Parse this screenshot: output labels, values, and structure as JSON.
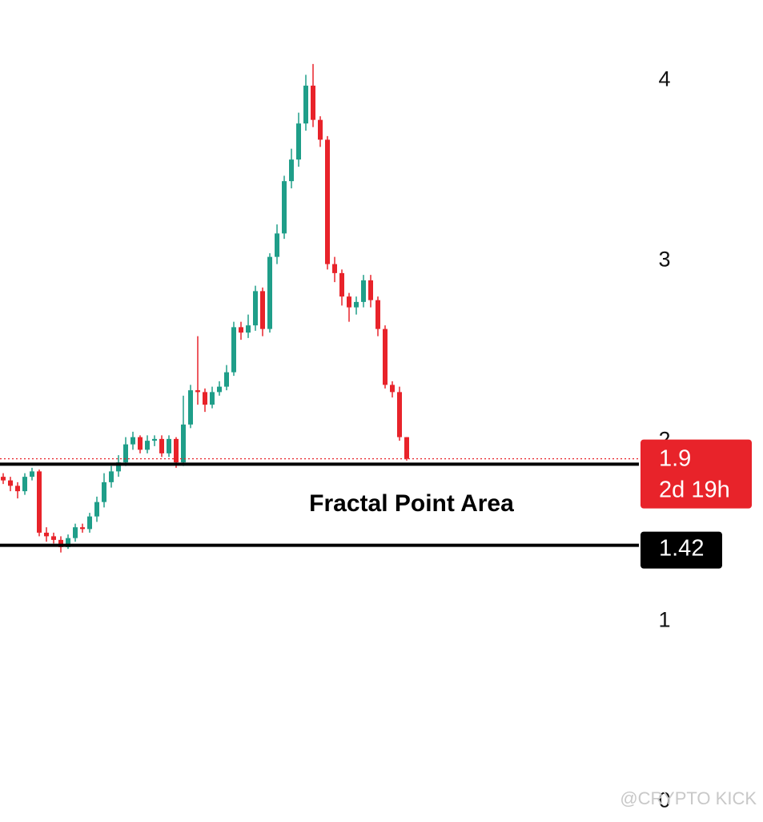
{
  "chart_data": {
    "type": "candlestick",
    "open": [
      1.8,
      1.78,
      1.75,
      1.72,
      1.8,
      1.83,
      1.49,
      1.47,
      1.45,
      1.41,
      1.46,
      1.52,
      1.51,
      1.58,
      1.66,
      1.77,
      1.83,
      1.88,
      1.98,
      2.02,
      1.95,
      2.0,
      2.01,
      1.93,
      2.01,
      1.88,
      2.09,
      2.28,
      2.27,
      2.2,
      2.27,
      2.3,
      2.38,
      2.63,
      2.6,
      2.64,
      2.83,
      2.62,
      3.02,
      3.15,
      3.44,
      3.56,
      3.76,
      3.97,
      3.78,
      3.67,
      2.98,
      2.93,
      2.8,
      2.74,
      2.77,
      2.89,
      2.78,
      2.62,
      2.31,
      2.27,
      2.02
    ],
    "high": [
      1.82,
      1.8,
      1.77,
      1.82,
      1.85,
      1.84,
      1.52,
      1.49,
      1.47,
      1.48,
      1.54,
      1.54,
      1.6,
      1.69,
      1.82,
      1.86,
      1.92,
      2.02,
      2.05,
      2.03,
      2.03,
      2.03,
      2.03,
      2.03,
      2.02,
      2.25,
      2.31,
      2.58,
      2.29,
      2.3,
      2.33,
      2.42,
      2.66,
      2.66,
      2.7,
      2.86,
      2.85,
      3.04,
      3.2,
      3.47,
      3.62,
      3.82,
      4.03,
      4.09,
      3.8,
      3.69,
      3.02,
      2.95,
      2.82,
      2.8,
      2.92,
      2.92,
      2.8,
      2.64,
      2.33,
      2.3,
      2.02
    ],
    "low": [
      1.76,
      1.72,
      1.68,
      1.7,
      1.78,
      1.47,
      1.44,
      1.43,
      1.38,
      1.4,
      1.44,
      1.49,
      1.49,
      1.55,
      1.63,
      1.74,
      1.8,
      1.86,
      1.95,
      1.93,
      1.93,
      1.97,
      1.91,
      1.91,
      1.85,
      1.86,
      2.07,
      2.2,
      2.16,
      2.18,
      2.25,
      2.28,
      2.36,
      2.56,
      2.57,
      2.61,
      2.58,
      2.6,
      2.98,
      3.12,
      3.4,
      3.52,
      3.72,
      3.74,
      3.63,
      2.95,
      2.88,
      2.75,
      2.66,
      2.7,
      2.74,
      2.74,
      2.58,
      2.29,
      2.24,
      2.0,
      1.89
    ],
    "close": [
      1.78,
      1.75,
      1.72,
      1.8,
      1.83,
      1.49,
      1.47,
      1.45,
      1.41,
      1.46,
      1.52,
      1.51,
      1.58,
      1.66,
      1.77,
      1.83,
      1.88,
      1.98,
      2.02,
      1.95,
      2.0,
      2.01,
      1.93,
      2.01,
      1.88,
      2.09,
      2.28,
      2.27,
      2.2,
      2.27,
      2.3,
      2.38,
      2.63,
      2.6,
      2.64,
      2.83,
      2.62,
      3.02,
      3.15,
      3.44,
      3.56,
      3.76,
      3.97,
      3.78,
      3.67,
      2.98,
      2.93,
      2.8,
      2.74,
      2.77,
      2.89,
      2.78,
      2.62,
      2.31,
      2.27,
      2.02,
      1.9
    ],
    "up_color": "#1f9e89",
    "down_color": "#e8232a",
    "ylim": [
      -0.115,
      4.445
    ],
    "yticks": [
      0,
      1,
      2,
      3,
      4
    ],
    "price_line": {
      "value": 1.9,
      "countdown": "2d 19h",
      "color": "#e8232a"
    },
    "levels": [
      1.87,
      1.42
    ],
    "annotation": "Fractal Point Area",
    "watermark": "@CRYPTO KICK"
  }
}
